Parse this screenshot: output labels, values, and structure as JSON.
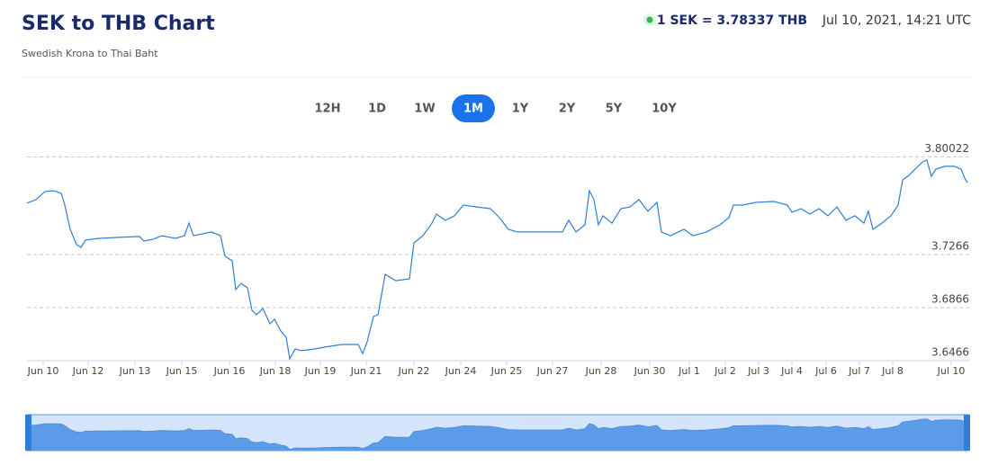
{
  "header": {
    "title": "SEK to THB Chart",
    "subtitle": "Swedish Krona to Thai Baht",
    "rate": "1 SEK = 3.78337 THB",
    "timestamp": "Jul 10, 2021, 14:21 UTC"
  },
  "range_buttons": {
    "labels": [
      "12H",
      "1D",
      "1W",
      "1M",
      "1Y",
      "2Y",
      "5Y",
      "10Y"
    ],
    "active": 3
  },
  "chart_data": {
    "type": "line",
    "x": [
      0,
      1,
      2,
      3,
      3.8,
      4.2,
      4.8,
      5.5,
      6,
      6.5,
      8,
      10,
      12.5,
      13,
      14,
      15,
      16.5,
      17.5,
      18,
      18.5,
      19.5,
      20.5,
      21.5,
      22,
      22.8,
      23.2,
      23.8,
      24.5,
      25,
      25.5,
      26.2,
      27,
      27.5,
      28.2,
      28.8,
      29.2,
      29.8,
      30.5,
      32,
      33,
      35,
      36.8,
      37.3,
      37.8,
      38.5,
      39,
      39.8,
      41,
      42.5,
      43,
      44,
      45,
      45.5,
      46.5,
      47.5,
      48.5,
      50,
      51.5,
      52.5,
      53.5,
      54.5,
      56.5,
      58,
      59.5,
      60.2,
      61,
      62,
      62.5,
      63,
      63.5,
      64,
      65,
      66,
      67,
      68,
      69,
      70,
      70.5,
      71.5,
      73,
      74,
      75.5,
      77,
      78,
      78.5,
      79.5,
      81,
      83,
      84.5,
      85,
      86,
      87,
      88,
      89,
      90,
      91,
      92,
      93,
      93.5,
      94,
      95,
      96,
      96.8,
      97.3,
      98,
      98.5,
      99.5,
      100,
      100.5,
      101,
      102,
      103,
      103.8,
      104.2,
      104.5
    ],
    "series": [
      {
        "name": "SEK/THB",
        "color": "#2f7ed8",
        "values": [
          3.7653,
          3.768,
          3.7741,
          3.7747,
          3.7727,
          3.7639,
          3.7456,
          3.7341,
          3.732,
          3.7375,
          3.7388,
          3.7395,
          3.7402,
          3.7368,
          3.7381,
          3.7408,
          3.7388,
          3.7408,
          3.7503,
          3.7408,
          3.7422,
          3.7436,
          3.7408,
          3.7253,
          3.7219,
          3.7002,
          3.7049,
          3.7015,
          3.6846,
          3.6812,
          3.6859,
          3.6744,
          3.6778,
          3.669,
          3.6642,
          3.648,
          3.6554,
          3.6541,
          3.6554,
          3.6568,
          3.6588,
          3.6588,
          3.652,
          3.6608,
          3.6798,
          3.6812,
          3.7117,
          3.7069,
          3.7083,
          3.7354,
          3.7408,
          3.7503,
          3.7571,
          3.7524,
          3.7558,
          3.7639,
          3.7625,
          3.7612,
          3.7544,
          3.7456,
          3.7436,
          3.7436,
          3.7436,
          3.7436,
          3.7524,
          3.7436,
          3.749,
          3.7747,
          3.768,
          3.749,
          3.7558,
          3.7503,
          3.7612,
          3.7625,
          3.768,
          3.7592,
          3.7659,
          3.7436,
          3.7408,
          3.7456,
          3.7408,
          3.7436,
          3.749,
          3.7544,
          3.7639,
          3.7639,
          3.7659,
          3.7666,
          3.7639,
          3.7585,
          3.7612,
          3.7571,
          3.7612,
          3.7558,
          3.7625,
          3.7524,
          3.7558,
          3.7503,
          3.7592,
          3.7456,
          3.7503,
          3.7558,
          3.7639,
          3.7829,
          3.7863,
          3.7897,
          3.7964,
          3.7978,
          3.7856,
          3.791,
          3.7931,
          3.7931,
          3.791,
          3.7842,
          3.7808
        ]
      }
    ],
    "xlim": [
      0,
      104.5
    ],
    "xticks": [
      {
        "value": 1.8,
        "label": "Jun 10"
      },
      {
        "value": 6.8,
        "label": "Jun 12"
      },
      {
        "value": 12,
        "label": "Jun 13"
      },
      {
        "value": 17.2,
        "label": "Jun 15"
      },
      {
        "value": 22.5,
        "label": "Jun 16"
      },
      {
        "value": 27.6,
        "label": "Jun 18"
      },
      {
        "value": 32.6,
        "label": "Jun 19"
      },
      {
        "value": 37.7,
        "label": "Jun 21"
      },
      {
        "value": 43,
        "label": "Jun 22"
      },
      {
        "value": 48.2,
        "label": "Jun 24"
      },
      {
        "value": 53.3,
        "label": "Jun 25"
      },
      {
        "value": 58.4,
        "label": "Jun 27"
      },
      {
        "value": 63.8,
        "label": "Jun 28"
      },
      {
        "value": 69.2,
        "label": "Jun 30"
      },
      {
        "value": 73.6,
        "label": "Jul 1"
      },
      {
        "value": 77.6,
        "label": "Jul 2"
      },
      {
        "value": 81.3,
        "label": "Jul 3"
      },
      {
        "value": 85,
        "label": "Jul 4"
      },
      {
        "value": 88.8,
        "label": "Jul 6"
      },
      {
        "value": 92.5,
        "label": "Jul 7"
      },
      {
        "value": 96.2,
        "label": "Jul 8"
      },
      {
        "value": 102.7,
        "label": "Jul 10"
      }
    ],
    "ylim": [
      3.6466,
      3.81
    ],
    "yticks": [
      3.6466,
      3.6866,
      3.7266,
      3.80022
    ],
    "grid": true
  }
}
